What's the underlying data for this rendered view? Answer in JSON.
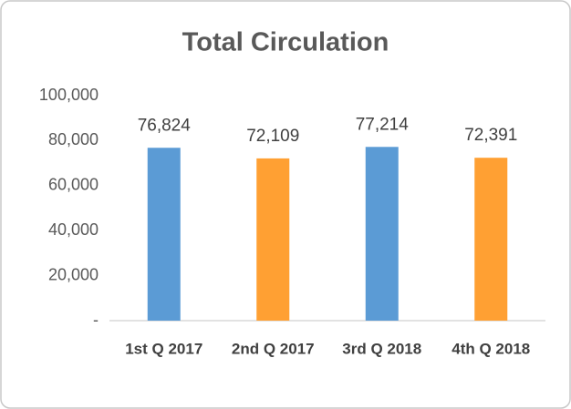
{
  "chart_data": {
    "type": "bar",
    "title": "Total Circulation",
    "categories": [
      "1st Q 2017",
      "2nd Q 2017",
      "3rd Q 2018",
      "4th Q 2018"
    ],
    "values": [
      76824,
      72109,
      77214,
      72391
    ],
    "value_labels": [
      "76,824",
      "72,109",
      "77,214",
      "72,391"
    ],
    "colors": [
      "#5b9bd5",
      "#ffa033",
      "#5b9bd5",
      "#ffa033"
    ],
    "ylim": [
      0,
      100000
    ],
    "yticks": [
      {
        "value": 0,
        "label": "-"
      },
      {
        "value": 20000,
        "label": "20,000"
      },
      {
        "value": 40000,
        "label": "40,000"
      },
      {
        "value": 60000,
        "label": "60,000"
      },
      {
        "value": 80000,
        "label": "80,000"
      },
      {
        "value": 100000,
        "label": "100,000"
      }
    ],
    "grid": false
  }
}
